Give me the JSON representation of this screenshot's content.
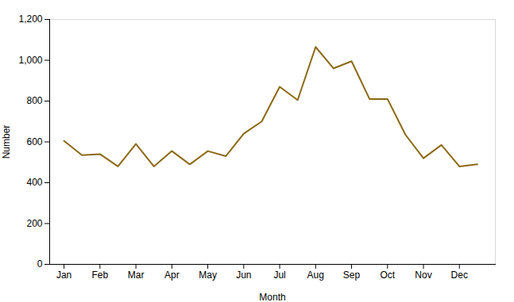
{
  "chart_data": {
    "type": "line",
    "x": [
      1,
      1.5,
      2,
      2.5,
      3,
      3.5,
      4,
      4.5,
      5,
      5.5,
      6,
      6.5,
      7,
      7.5,
      8,
      8.5,
      9,
      9.5,
      10,
      10.5,
      11,
      11.5,
      12,
      12.5
    ],
    "values": [
      605,
      535,
      540,
      480,
      590,
      480,
      555,
      490,
      555,
      530,
      640,
      700,
      870,
      805,
      1065,
      960,
      995,
      810,
      810,
      635,
      520,
      585,
      480,
      490
    ],
    "color": "#8B6914",
    "xlabel": "Month",
    "ylabel": "Number",
    "xlim": [
      0.6,
      13.0
    ],
    "ylim": [
      0,
      1200
    ],
    "xticks": [
      {
        "value": 1,
        "label": "Jan"
      },
      {
        "value": 2,
        "label": "Feb"
      },
      {
        "value": 3,
        "label": "Mar"
      },
      {
        "value": 4,
        "label": "Apr"
      },
      {
        "value": 5,
        "label": "May"
      },
      {
        "value": 6,
        "label": "Jun"
      },
      {
        "value": 7,
        "label": "Jul"
      },
      {
        "value": 8,
        "label": "Aug"
      },
      {
        "value": 9,
        "label": "Sep"
      },
      {
        "value": 10,
        "label": "Oct"
      },
      {
        "value": 11,
        "label": "Nov"
      },
      {
        "value": 12,
        "label": "Dec"
      }
    ],
    "yticks": [
      0,
      200,
      400,
      600,
      800,
      {
        "value": 1000,
        "label": "1,000"
      },
      {
        "value": 1200,
        "label": "1,200"
      }
    ],
    "grid": false
  }
}
